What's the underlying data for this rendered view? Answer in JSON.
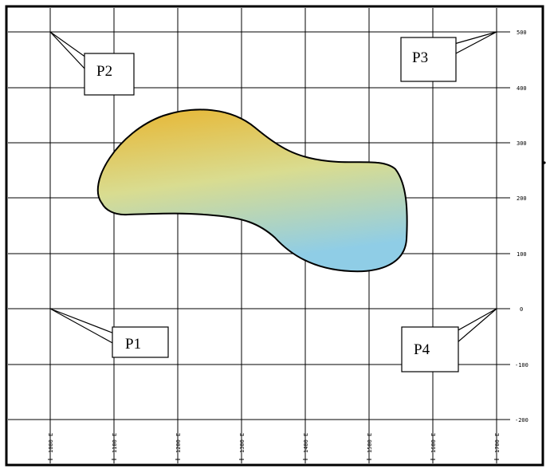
{
  "callouts": [
    {
      "id": "p1",
      "label": "P1"
    },
    {
      "id": "p2",
      "label": "P2"
    },
    {
      "id": "p3",
      "label": "P3"
    },
    {
      "id": "p4",
      "label": "P4"
    }
  ],
  "right_axis_labels": [
    "500",
    "400",
    "300",
    "200",
    "100",
    "0",
    "-100",
    "-200"
  ],
  "bottom_axis_labels": [
    "1000 E",
    "1100 E",
    "1200 E",
    "1300 E",
    "1400 E",
    "1500 E",
    "1600 E",
    "1700 E"
  ],
  "region": {
    "gradient_top_color": "#e8b530",
    "gradient_mid_color": "#d9dc90",
    "gradient_bottom_color": "#8fcde6"
  },
  "colors": {
    "grid": "#000000",
    "frame": "#000000",
    "background": "#ffffff"
  }
}
